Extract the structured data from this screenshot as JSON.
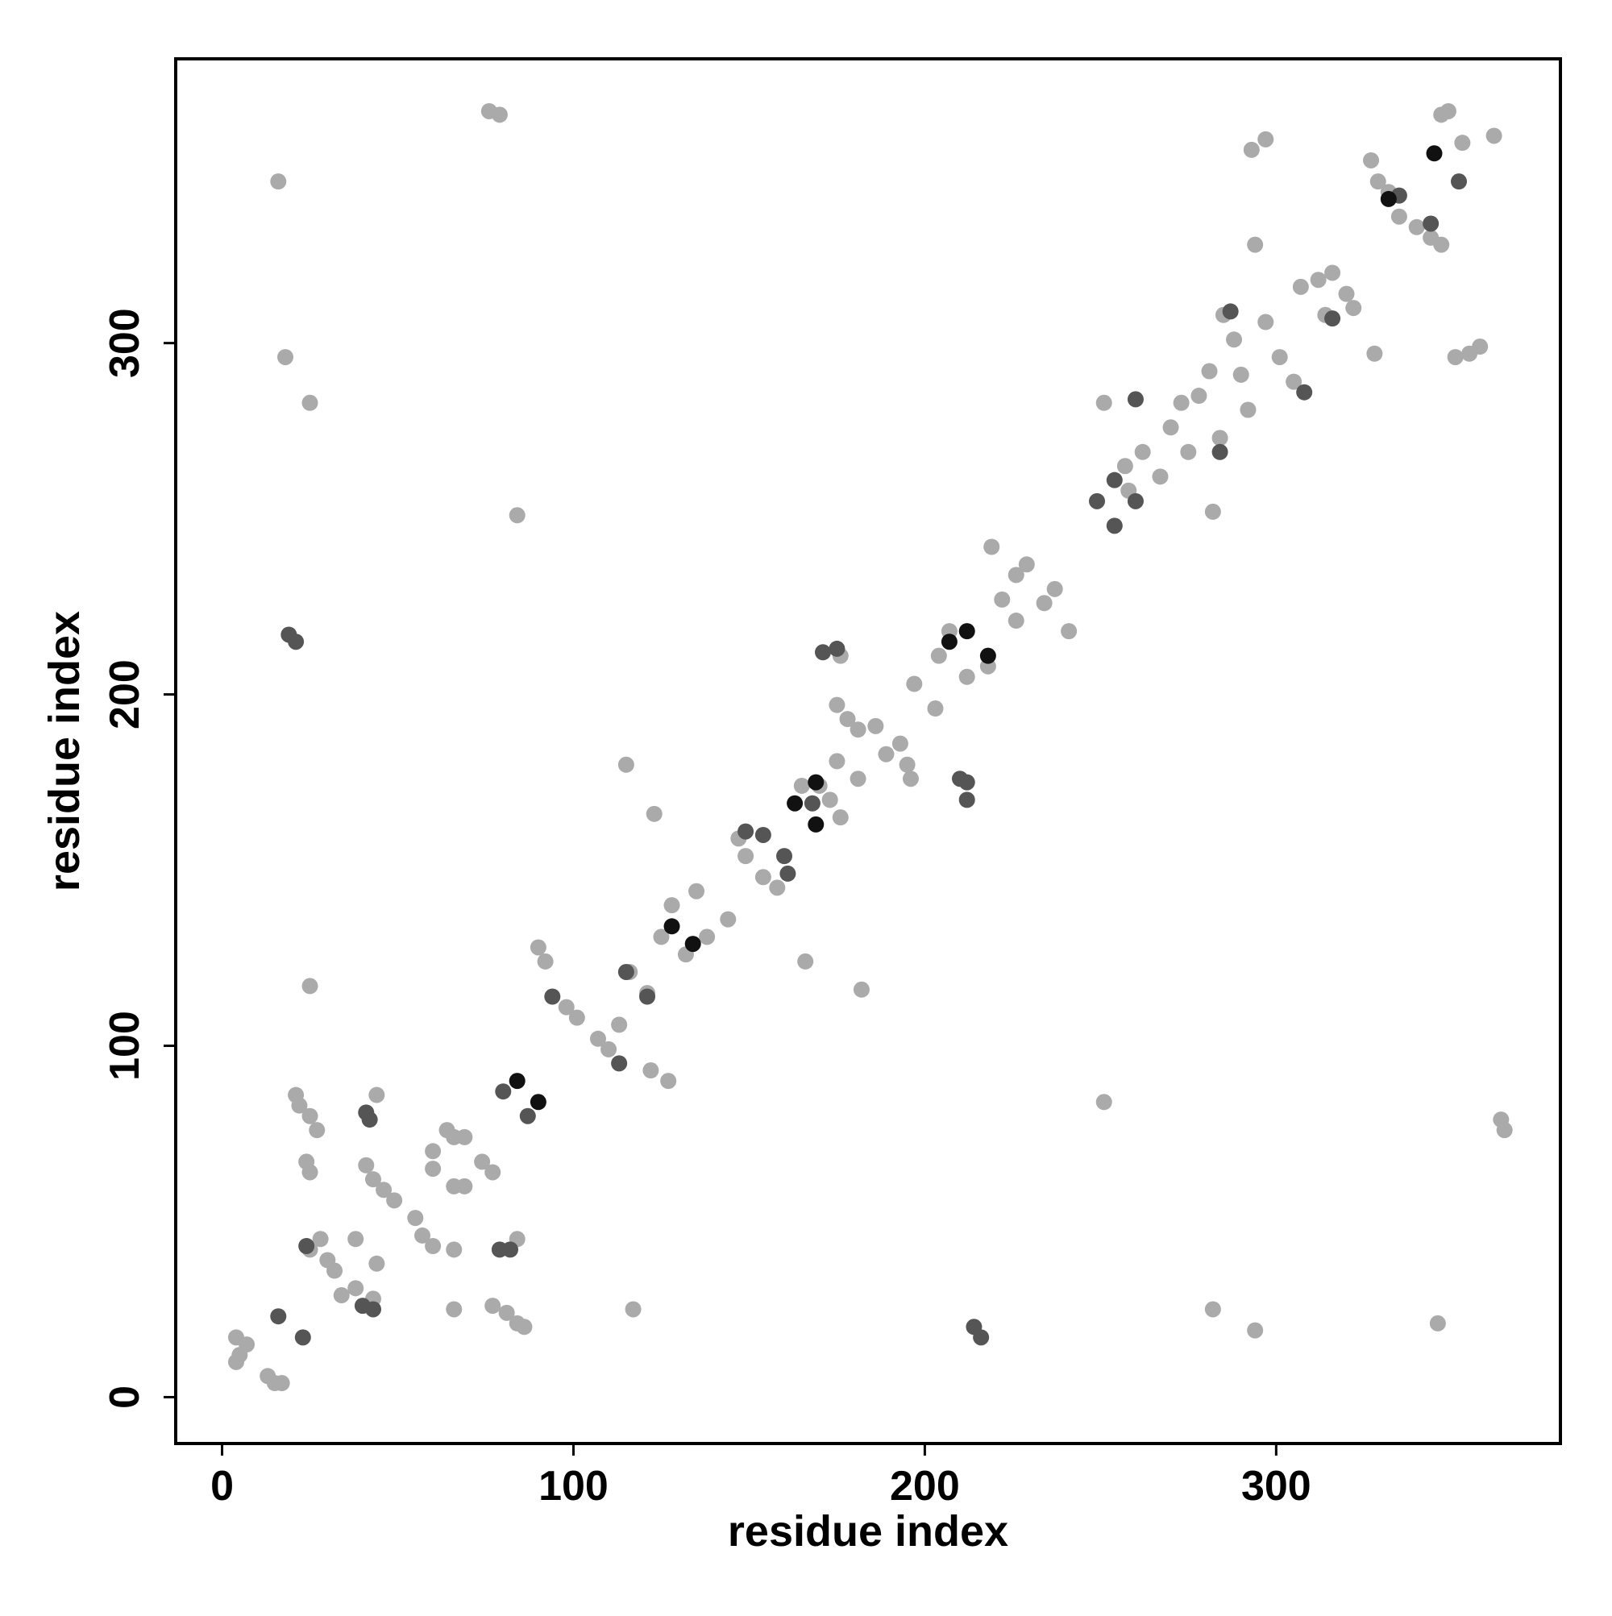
{
  "chart_data": {
    "type": "scatter",
    "xlabel": "residue index",
    "ylabel": "residue index",
    "xlim": [
      -13.2,
      380.9
    ],
    "ylim": [
      -13.2,
      380.9
    ],
    "xticks": [
      0,
      100,
      200,
      300
    ],
    "yticks": [
      0,
      100,
      200,
      300
    ],
    "series": [
      {
        "color": "#aaaaaa",
        "x": [
          4,
          5,
          7,
          4,
          13,
          15,
          17,
          25,
          28,
          30,
          32,
          38,
          44,
          34,
          38,
          43,
          21,
          22,
          25,
          27,
          24,
          25,
          44,
          41,
          43,
          46,
          49,
          55,
          57,
          60,
          60,
          60,
          64,
          66,
          69,
          66,
          69,
          74,
          77,
          66,
          66,
          77,
          81,
          84,
          86,
          84,
          16,
          18,
          25,
          25,
          76,
          79,
          84,
          90,
          92,
          98,
          101,
          107,
          110,
          113,
          116,
          121,
          122,
          127,
          115,
          123,
          117,
          125,
          128,
          132,
          135,
          138,
          144,
          147,
          149,
          154,
          158,
          166,
          182,
          165,
          170,
          173,
          175,
          176,
          175,
          178,
          181,
          186,
          189,
          193,
          195,
          196,
          181,
          176,
          197,
          203,
          204,
          207,
          212,
          218,
          219,
          222,
          226,
          229,
          226,
          234,
          237,
          241,
          251,
          251,
          257,
          262,
          258,
          267,
          270,
          275,
          273,
          278,
          282,
          282,
          281,
          284,
          285,
          288,
          290,
          292,
          293,
          297,
          294,
          294,
          297,
          301,
          305,
          307,
          312,
          316,
          314,
          320,
          322,
          328,
          327,
          329,
          332,
          335,
          340,
          344,
          347,
          351,
          355,
          358,
          347,
          349,
          353,
          362,
          346,
          364,
          365
        ],
        "values": [
          17,
          12,
          15,
          10,
          6,
          4,
          4,
          42,
          45,
          39,
          36,
          45,
          38,
          29,
          31,
          28,
          86,
          83,
          80,
          76,
          67,
          64,
          86,
          66,
          62,
          59,
          56,
          51,
          46,
          43,
          70,
          65,
          76,
          74,
          74,
          60,
          60,
          67,
          64,
          42,
          25,
          26,
          24,
          21,
          20,
          45,
          346,
          296,
          283,
          117,
          366,
          365,
          251,
          128,
          124,
          111,
          108,
          102,
          99,
          106,
          121,
          115,
          93,
          90,
          180,
          166,
          25,
          131,
          140,
          126,
          144,
          131,
          136,
          159,
          154,
          148,
          145,
          124,
          116,
          174,
          174,
          170,
          181,
          165,
          197,
          193,
          190,
          191,
          183,
          186,
          180,
          176,
          176,
          211,
          203,
          196,
          211,
          218,
          205,
          208,
          242,
          227,
          234,
          237,
          221,
          226,
          230,
          218,
          283,
          84,
          265,
          269,
          258,
          262,
          276,
          269,
          283,
          285,
          252,
          25,
          292,
          273,
          308,
          301,
          291,
          281,
          355,
          358,
          328,
          19,
          306,
          296,
          289,
          316,
          318,
          320,
          308,
          314,
          310,
          297,
          352,
          346,
          343,
          336,
          333,
          330,
          328,
          296,
          297,
          299,
          365,
          366,
          357,
          359,
          21,
          79,
          76
        ]
      },
      {
        "color": "#555555",
        "x": [
          16,
          23,
          24,
          41,
          42,
          40,
          43,
          79,
          82,
          80,
          87,
          94,
          113,
          115,
          121,
          149,
          154,
          160,
          161,
          171,
          175,
          210,
          212,
          212,
          19,
          21,
          214,
          216,
          249,
          254,
          254,
          260,
          260,
          284,
          287,
          308,
          316,
          335,
          344,
          352,
          168
        ],
        "values": [
          23,
          17,
          43,
          81,
          79,
          26,
          25,
          42,
          42,
          87,
          80,
          114,
          95,
          121,
          114,
          161,
          160,
          154,
          149,
          212,
          213,
          176,
          175,
          170,
          217,
          215,
          20,
          17,
          255,
          248,
          261,
          255,
          284,
          269,
          309,
          286,
          307,
          342,
          334,
          346,
          169
        ]
      },
      {
        "color": "#111111",
        "x": [
          84,
          90,
          128,
          134,
          169,
          163,
          169,
          212,
          218,
          207,
          332,
          345
        ],
        "values": [
          90,
          84,
          134,
          129,
          163,
          169,
          175,
          218,
          211,
          215,
          341,
          354
        ]
      }
    ]
  }
}
